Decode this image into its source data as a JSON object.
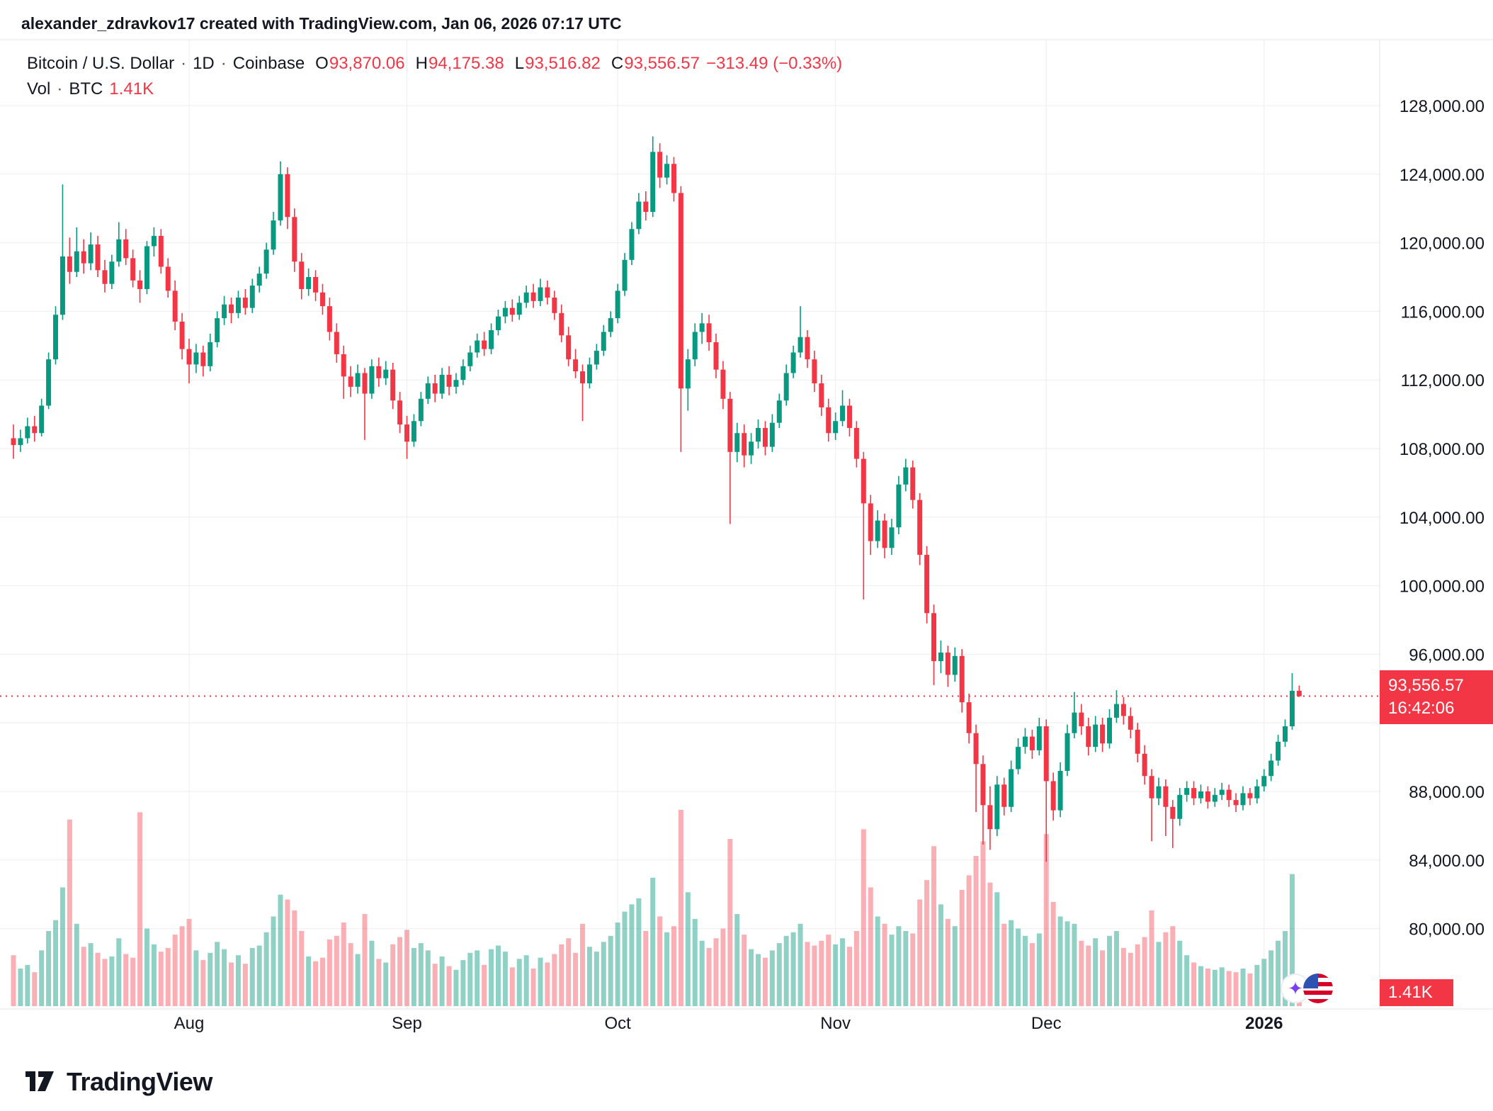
{
  "attribution": "alexander_zdravkov17 created with TradingView.com, Jan 06, 2026 07:17 UTC",
  "legend": {
    "title": "Bitcoin / U.S. Dollar",
    "separator": "·",
    "interval": "1D",
    "exchange": "Coinbase",
    "open_label": "O",
    "open": "93,870.06",
    "high_label": "H",
    "high": "94,175.38",
    "low_label": "L",
    "low": "93,516.82",
    "close_label": "C",
    "close": "93,556.57",
    "change": "−313.49 (−0.33%)",
    "volume_row": {
      "label": "Vol",
      "separator": "·",
      "unit": "BTC",
      "value": "1.41K"
    }
  },
  "price_label": {
    "value": "93,556.57",
    "countdown": "16:42:06"
  },
  "volume_axis_label": "1.41K",
  "overlay_icons": {
    "sparkle_glyph": "✦"
  },
  "footer": {
    "brand": "TradingView"
  },
  "colors": {
    "up": "#089981",
    "down": "#f23645",
    "volume_up": "rgba(8,153,129,0.45)",
    "volume_down": "rgba(242,54,69,0.40)",
    "accent_red": "#f23645",
    "text": "#131722",
    "grid": "#ebedf0",
    "axis_border": "#e0e3eb"
  },
  "chart_data": {
    "type": "candlestick",
    "title": "Bitcoin / U.S. Dollar",
    "exchange": "Coinbase",
    "interval": "1D",
    "current": {
      "price": 93556.57,
      "change": -313.49,
      "change_pct": -0.33,
      "volume_k_btc": 1.41
    },
    "price_axis": {
      "min": 80000,
      "max": 128000,
      "tick_step": 4000,
      "hidden_label": 92000
    },
    "time_axis": {
      "months": [
        {
          "label": "Aug",
          "day": 25
        },
        {
          "label": "Sep",
          "day": 56
        },
        {
          "label": "Oct",
          "day": 86
        },
        {
          "label": "Nov",
          "day": 117
        },
        {
          "label": "Dec",
          "day": 147
        },
        {
          "label": "2026",
          "day": 178,
          "emphasis": true
        }
      ]
    },
    "candle_format": [
      "open",
      "high",
      "low",
      "close",
      "volume_k_btc"
    ],
    "candles": [
      [
        108600,
        109400,
        107400,
        108200,
        4.2
      ],
      [
        108200,
        109100,
        107800,
        108600,
        3.1
      ],
      [
        108600,
        109800,
        108300,
        109300,
        3.4
      ],
      [
        109300,
        109900,
        108400,
        108900,
        2.8
      ],
      [
        108900,
        110900,
        108700,
        110500,
        4.6
      ],
      [
        110500,
        113600,
        110300,
        113200,
        6.2
      ],
      [
        113200,
        116300,
        112900,
        115800,
        7.1
      ],
      [
        115800,
        123400,
        115500,
        119200,
        9.8
      ],
      [
        119200,
        120300,
        117600,
        118300,
        15.4
      ],
      [
        118300,
        120900,
        118000,
        119500,
        6.8
      ],
      [
        119500,
        120200,
        118200,
        118800,
        4.9
      ],
      [
        118800,
        120600,
        118400,
        119900,
        5.2
      ],
      [
        119900,
        120400,
        118000,
        118400,
        4.4
      ],
      [
        118400,
        119000,
        117100,
        117600,
        3.9
      ],
      [
        117600,
        119300,
        117300,
        118900,
        4.1
      ],
      [
        118900,
        121200,
        118600,
        120200,
        5.6
      ],
      [
        120200,
        120800,
        118700,
        119100,
        4.3
      ],
      [
        119100,
        119600,
        117400,
        117800,
        4.0
      ],
      [
        117800,
        118400,
        116500,
        117300,
        16.0
      ],
      [
        117300,
        120100,
        117000,
        119800,
        6.4
      ],
      [
        119800,
        120900,
        119200,
        120400,
        5.1
      ],
      [
        120400,
        120800,
        118200,
        118600,
        4.5
      ],
      [
        118600,
        119100,
        116800,
        117200,
        4.8
      ],
      [
        117200,
        117800,
        114900,
        115400,
        5.9
      ],
      [
        115400,
        115900,
        113200,
        113800,
        6.6
      ],
      [
        113800,
        114400,
        111800,
        112900,
        7.2
      ],
      [
        112900,
        114100,
        112400,
        113600,
        4.6
      ],
      [
        113600,
        114000,
        112200,
        112800,
        3.8
      ],
      [
        112800,
        114700,
        112500,
        114200,
        4.4
      ],
      [
        114200,
        116000,
        113900,
        115600,
        5.3
      ],
      [
        115600,
        116900,
        115200,
        116400,
        4.7
      ],
      [
        116400,
        116800,
        115300,
        115900,
        3.6
      ],
      [
        115900,
        117200,
        115600,
        116800,
        4.2
      ],
      [
        116800,
        117300,
        115800,
        116200,
        3.5
      ],
      [
        116200,
        117900,
        115900,
        117500,
        4.8
      ],
      [
        117500,
        118600,
        117100,
        118200,
        5.0
      ],
      [
        118200,
        120000,
        117900,
        119600,
        6.1
      ],
      [
        119600,
        121800,
        119300,
        121300,
        7.4
      ],
      [
        121300,
        124750,
        121000,
        124000,
        9.2
      ],
      [
        124000,
        124400,
        120800,
        121500,
        8.8
      ],
      [
        121500,
        122000,
        118300,
        118900,
        7.9
      ],
      [
        118900,
        119400,
        116700,
        117300,
        6.2
      ],
      [
        117300,
        118500,
        116900,
        118000,
        4.1
      ],
      [
        118000,
        118400,
        116600,
        117100,
        3.7
      ],
      [
        117100,
        117600,
        115800,
        116300,
        4.0
      ],
      [
        116300,
        116800,
        114300,
        114800,
        5.5
      ],
      [
        114800,
        115300,
        113000,
        113500,
        5.8
      ],
      [
        113500,
        114000,
        110900,
        112200,
        6.9
      ],
      [
        112200,
        112800,
        111000,
        111600,
        5.2
      ],
      [
        111600,
        112900,
        111200,
        112400,
        4.3
      ],
      [
        112400,
        112700,
        108500,
        111200,
        7.6
      ],
      [
        111200,
        113200,
        110900,
        112800,
        5.4
      ],
      [
        112800,
        113300,
        111600,
        112100,
        3.9
      ],
      [
        112100,
        113100,
        111700,
        112600,
        3.6
      ],
      [
        112600,
        113000,
        110300,
        110800,
        5.1
      ],
      [
        110800,
        111300,
        108900,
        109400,
        5.7
      ],
      [
        109400,
        109900,
        107400,
        108400,
        6.3
      ],
      [
        108400,
        110000,
        108100,
        109600,
        4.8
      ],
      [
        109600,
        111300,
        109300,
        110900,
        5.2
      ],
      [
        110900,
        112200,
        110600,
        111800,
        4.6
      ],
      [
        111800,
        112300,
        110700,
        111200,
        3.5
      ],
      [
        111200,
        112700,
        110900,
        112300,
        4.1
      ],
      [
        112300,
        112800,
        111100,
        111600,
        3.3
      ],
      [
        111600,
        112400,
        111200,
        112000,
        3.0
      ],
      [
        112000,
        113200,
        111700,
        112800,
        3.8
      ],
      [
        112800,
        114000,
        112500,
        113600,
        4.4
      ],
      [
        113600,
        114700,
        113300,
        114300,
        4.6
      ],
      [
        114300,
        114800,
        113400,
        113800,
        3.4
      ],
      [
        113800,
        115300,
        113500,
        114900,
        4.7
      ],
      [
        114900,
        116100,
        114600,
        115700,
        5.0
      ],
      [
        115700,
        116600,
        115300,
        116200,
        4.5
      ],
      [
        116200,
        116700,
        115400,
        115800,
        3.2
      ],
      [
        115800,
        116900,
        115500,
        116500,
        3.9
      ],
      [
        116500,
        117500,
        116200,
        117100,
        4.2
      ],
      [
        117100,
        117600,
        116200,
        116600,
        3.1
      ],
      [
        116600,
        117900,
        116300,
        117400,
        4.0
      ],
      [
        117400,
        117800,
        116400,
        116800,
        3.6
      ],
      [
        116800,
        117200,
        115500,
        115900,
        4.3
      ],
      [
        115900,
        116400,
        114200,
        114600,
        5.1
      ],
      [
        114600,
        115100,
        112800,
        113200,
        5.6
      ],
      [
        113200,
        113800,
        112100,
        112500,
        4.4
      ],
      [
        112500,
        112900,
        109600,
        111800,
        6.8
      ],
      [
        111800,
        113300,
        111500,
        112900,
        4.9
      ],
      [
        112900,
        114100,
        112600,
        113700,
        4.5
      ],
      [
        113700,
        115200,
        113400,
        114800,
        5.3
      ],
      [
        114800,
        116000,
        114500,
        115600,
        5.8
      ],
      [
        115600,
        117600,
        115300,
        117200,
        6.9
      ],
      [
        117200,
        119400,
        116900,
        119000,
        7.8
      ],
      [
        119000,
        121200,
        118700,
        120800,
        8.4
      ],
      [
        120800,
        122900,
        120500,
        122400,
        8.9
      ],
      [
        122400,
        123000,
        121300,
        121800,
        6.2
      ],
      [
        121800,
        126200,
        121500,
        125300,
        10.6
      ],
      [
        125300,
        125800,
        123200,
        123800,
        7.4
      ],
      [
        123800,
        125100,
        123400,
        124600,
        6.1
      ],
      [
        124600,
        125000,
        122400,
        122900,
        6.6
      ],
      [
        122900,
        123300,
        107800,
        111500,
        16.2
      ],
      [
        111500,
        113800,
        110200,
        113200,
        9.4
      ],
      [
        113200,
        115300,
        112800,
        114800,
        7.2
      ],
      [
        114800,
        115900,
        114100,
        115300,
        5.4
      ],
      [
        115300,
        115800,
        113700,
        114200,
        4.8
      ],
      [
        114200,
        114700,
        112100,
        112600,
        5.6
      ],
      [
        112600,
        113100,
        110300,
        110900,
        6.4
      ],
      [
        110900,
        111300,
        103600,
        107800,
        13.8
      ],
      [
        107800,
        109500,
        107200,
        108900,
        7.6
      ],
      [
        108900,
        109400,
        106900,
        107600,
        5.9
      ],
      [
        107600,
        108900,
        107100,
        108400,
        4.7
      ],
      [
        108400,
        109700,
        108000,
        109200,
        4.3
      ],
      [
        109200,
        109600,
        107600,
        108100,
        4.0
      ],
      [
        108100,
        110000,
        107800,
        109500,
        4.6
      ],
      [
        109500,
        111200,
        109200,
        110800,
        5.2
      ],
      [
        110800,
        112900,
        110500,
        112400,
        5.8
      ],
      [
        112400,
        114000,
        112100,
        113600,
        6.1
      ],
      [
        113600,
        116300,
        113300,
        114500,
        6.8
      ],
      [
        114500,
        114900,
        112700,
        113200,
        5.3
      ],
      [
        113200,
        113700,
        111300,
        111800,
        5.0
      ],
      [
        111800,
        112300,
        109900,
        110400,
        5.4
      ],
      [
        110400,
        110900,
        108400,
        108900,
        5.9
      ],
      [
        108900,
        110100,
        108500,
        109600,
        5.1
      ],
      [
        109600,
        111400,
        109300,
        110500,
        5.6
      ],
      [
        110500,
        110900,
        108700,
        109200,
        4.9
      ],
      [
        109200,
        109600,
        106900,
        107400,
        6.2
      ],
      [
        107400,
        107800,
        99200,
        104800,
        14.6
      ],
      [
        104800,
        105300,
        101800,
        102600,
        9.8
      ],
      [
        102600,
        104400,
        102200,
        103800,
        7.4
      ],
      [
        103800,
        104200,
        101600,
        102200,
        6.8
      ],
      [
        102200,
        103900,
        101800,
        103400,
        5.9
      ],
      [
        103400,
        106400,
        103000,
        105900,
        6.6
      ],
      [
        105900,
        107400,
        105500,
        106900,
        6.2
      ],
      [
        106900,
        107300,
        104500,
        105000,
        6.0
      ],
      [
        105000,
        105400,
        101200,
        101800,
        8.8
      ],
      [
        101800,
        102300,
        97800,
        98400,
        10.4
      ],
      [
        98400,
        98900,
        94200,
        95600,
        13.2
      ],
      [
        95600,
        96800,
        94900,
        96100,
        8.4
      ],
      [
        96100,
        96500,
        94100,
        94800,
        7.2
      ],
      [
        94800,
        96400,
        94400,
        95900,
        6.6
      ],
      [
        95900,
        96300,
        92600,
        93200,
        9.6
      ],
      [
        93200,
        93700,
        90800,
        91400,
        10.8
      ],
      [
        91400,
        91900,
        86800,
        89600,
        12.4
      ],
      [
        89600,
        90100,
        84900,
        87200,
        13.6
      ],
      [
        87200,
        88300,
        84600,
        85800,
        10.2
      ],
      [
        85800,
        88900,
        85400,
        88400,
        9.4
      ],
      [
        88400,
        88800,
        86600,
        87100,
        6.8
      ],
      [
        87100,
        89800,
        86800,
        89300,
        7.1
      ],
      [
        89300,
        91100,
        89000,
        90600,
        6.4
      ],
      [
        90600,
        91700,
        90200,
        91200,
        5.8
      ],
      [
        91200,
        91600,
        89900,
        90400,
        5.2
      ],
      [
        90400,
        92300,
        90100,
        91800,
        6.0
      ],
      [
        91800,
        92200,
        83900,
        88600,
        14.2
      ],
      [
        88600,
        89100,
        86300,
        86900,
        8.6
      ],
      [
        86900,
        89700,
        86500,
        89200,
        7.4
      ],
      [
        89200,
        91900,
        88900,
        91400,
        7.0
      ],
      [
        91400,
        93800,
        91100,
        92600,
        6.8
      ],
      [
        92600,
        93100,
        91300,
        91800,
        5.4
      ],
      [
        91800,
        92300,
        90100,
        90600,
        5.0
      ],
      [
        90600,
        92400,
        90300,
        91900,
        5.6
      ],
      [
        91900,
        92300,
        90300,
        90800,
        4.6
      ],
      [
        90800,
        92800,
        90500,
        92300,
        5.8
      ],
      [
        92300,
        93900,
        92000,
        93100,
        6.2
      ],
      [
        93100,
        93500,
        91900,
        92400,
        4.8
      ],
      [
        92400,
        92900,
        91100,
        91600,
        4.4
      ],
      [
        91600,
        92000,
        89700,
        90200,
        5.1
      ],
      [
        90200,
        90700,
        88400,
        88900,
        5.7
      ],
      [
        88900,
        89300,
        85100,
        87600,
        7.9
      ],
      [
        87600,
        88800,
        87200,
        88300,
        5.3
      ],
      [
        88300,
        88700,
        85400,
        87100,
        6.1
      ],
      [
        87100,
        87500,
        84700,
        86400,
        6.6
      ],
      [
        86400,
        88200,
        86000,
        87800,
        5.4
      ],
      [
        87800,
        88600,
        87400,
        88200,
        4.2
      ],
      [
        88200,
        88600,
        87200,
        87600,
        3.6
      ],
      [
        87600,
        88400,
        87300,
        88000,
        3.3
      ],
      [
        88000,
        88300,
        87000,
        87400,
        3.1
      ],
      [
        87400,
        88200,
        87100,
        87800,
        3.0
      ],
      [
        87800,
        88500,
        87500,
        88100,
        3.2
      ],
      [
        88100,
        88400,
        87100,
        87500,
        2.9
      ],
      [
        87500,
        87900,
        86800,
        87200,
        2.8
      ],
      [
        87200,
        88300,
        86900,
        87900,
        3.1
      ],
      [
        87900,
        88200,
        87200,
        87600,
        2.7
      ],
      [
        87600,
        88700,
        87300,
        88300,
        3.4
      ],
      [
        88300,
        89300,
        88000,
        88900,
        3.9
      ],
      [
        88900,
        90200,
        88600,
        89800,
        4.6
      ],
      [
        89800,
        91300,
        89500,
        90900,
        5.4
      ],
      [
        90900,
        92200,
        90600,
        91800,
        6.2
      ],
      [
        91800,
        94900,
        91600,
        93870,
        10.9
      ],
      [
        93870.06,
        94175.38,
        93516.82,
        93556.57,
        1.41
      ]
    ]
  }
}
